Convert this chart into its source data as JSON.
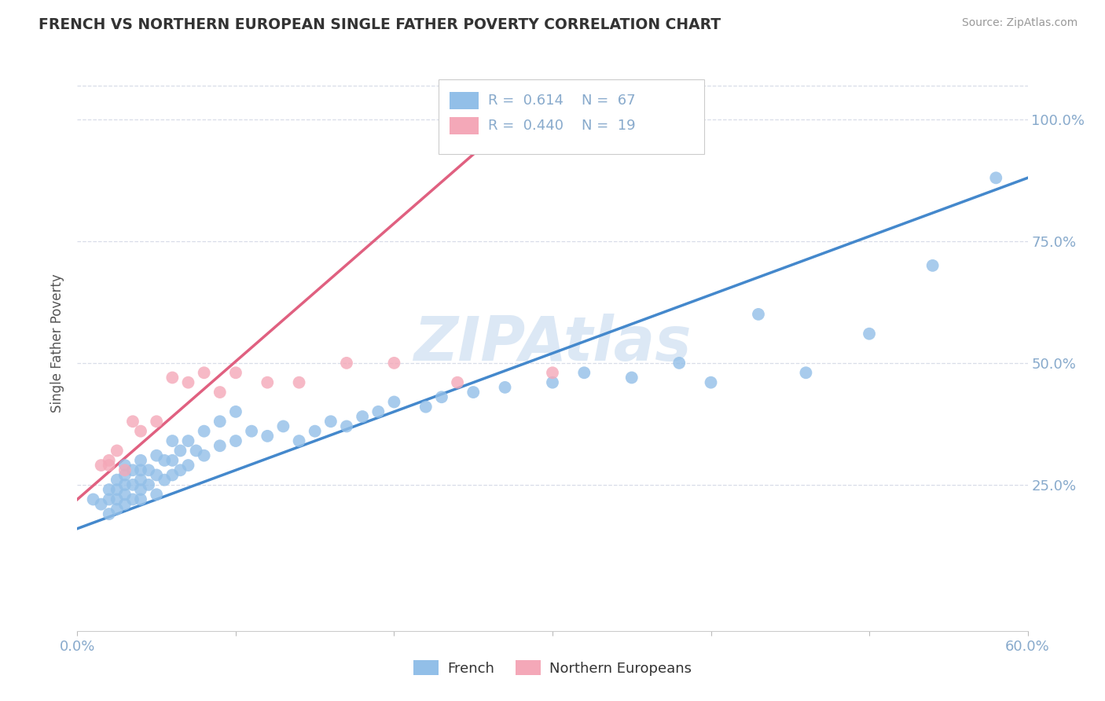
{
  "title": "FRENCH VS NORTHERN EUROPEAN SINGLE FATHER POVERTY CORRELATION CHART",
  "source": "Source: ZipAtlas.com",
  "ylabel": "Single Father Poverty",
  "xlim": [
    0.0,
    0.6
  ],
  "ylim": [
    -0.05,
    1.13
  ],
  "blue_color": "#92bfe8",
  "pink_color": "#f4a8b8",
  "blue_line_color": "#4488cc",
  "pink_line_color": "#e06080",
  "watermark": "ZIPAtlas",
  "watermark_color": "#dce8f5",
  "background_color": "#ffffff",
  "grid_color": "#d8dde8",
  "tick_color": "#88aacc",
  "title_color": "#333333",
  "ylabel_color": "#555555",
  "legend_blue_r_val": "0.614",
  "legend_blue_n_val": "67",
  "legend_pink_r_val": "0.440",
  "legend_pink_n_val": "19",
  "french_x": [
    0.01,
    0.015,
    0.02,
    0.02,
    0.02,
    0.025,
    0.025,
    0.025,
    0.025,
    0.03,
    0.03,
    0.03,
    0.03,
    0.03,
    0.035,
    0.035,
    0.035,
    0.04,
    0.04,
    0.04,
    0.04,
    0.04,
    0.045,
    0.045,
    0.05,
    0.05,
    0.05,
    0.055,
    0.055,
    0.06,
    0.06,
    0.06,
    0.065,
    0.065,
    0.07,
    0.07,
    0.075,
    0.08,
    0.08,
    0.09,
    0.09,
    0.1,
    0.1,
    0.11,
    0.12,
    0.13,
    0.14,
    0.15,
    0.16,
    0.17,
    0.18,
    0.19,
    0.2,
    0.22,
    0.23,
    0.25,
    0.27,
    0.3,
    0.32,
    0.35,
    0.38,
    0.4,
    0.43,
    0.46,
    0.5,
    0.54,
    0.58
  ],
  "french_y": [
    0.22,
    0.21,
    0.19,
    0.22,
    0.24,
    0.2,
    0.22,
    0.24,
    0.26,
    0.21,
    0.23,
    0.25,
    0.27,
    0.29,
    0.22,
    0.25,
    0.28,
    0.22,
    0.24,
    0.26,
    0.28,
    0.3,
    0.25,
    0.28,
    0.23,
    0.27,
    0.31,
    0.26,
    0.3,
    0.27,
    0.3,
    0.34,
    0.28,
    0.32,
    0.29,
    0.34,
    0.32,
    0.31,
    0.36,
    0.33,
    0.38,
    0.34,
    0.4,
    0.36,
    0.35,
    0.37,
    0.34,
    0.36,
    0.38,
    0.37,
    0.39,
    0.4,
    0.42,
    0.41,
    0.43,
    0.44,
    0.45,
    0.46,
    0.48,
    0.47,
    0.5,
    0.46,
    0.6,
    0.48,
    0.56,
    0.7,
    0.88
  ],
  "northern_x": [
    0.015,
    0.02,
    0.02,
    0.025,
    0.03,
    0.035,
    0.04,
    0.05,
    0.06,
    0.07,
    0.08,
    0.09,
    0.1,
    0.12,
    0.14,
    0.17,
    0.2,
    0.24,
    0.3
  ],
  "northern_y": [
    0.29,
    0.3,
    0.29,
    0.32,
    0.28,
    0.38,
    0.36,
    0.38,
    0.47,
    0.46,
    0.48,
    0.44,
    0.48,
    0.46,
    0.46,
    0.5,
    0.5,
    0.46,
    0.48
  ],
  "blue_line_x0": 0.0,
  "blue_line_y0": 0.16,
  "blue_line_x1": 0.6,
  "blue_line_y1": 0.88,
  "pink_line_x0": 0.0,
  "pink_line_y0": 0.22,
  "pink_line_x1": 0.3,
  "pink_line_y1": 1.07
}
